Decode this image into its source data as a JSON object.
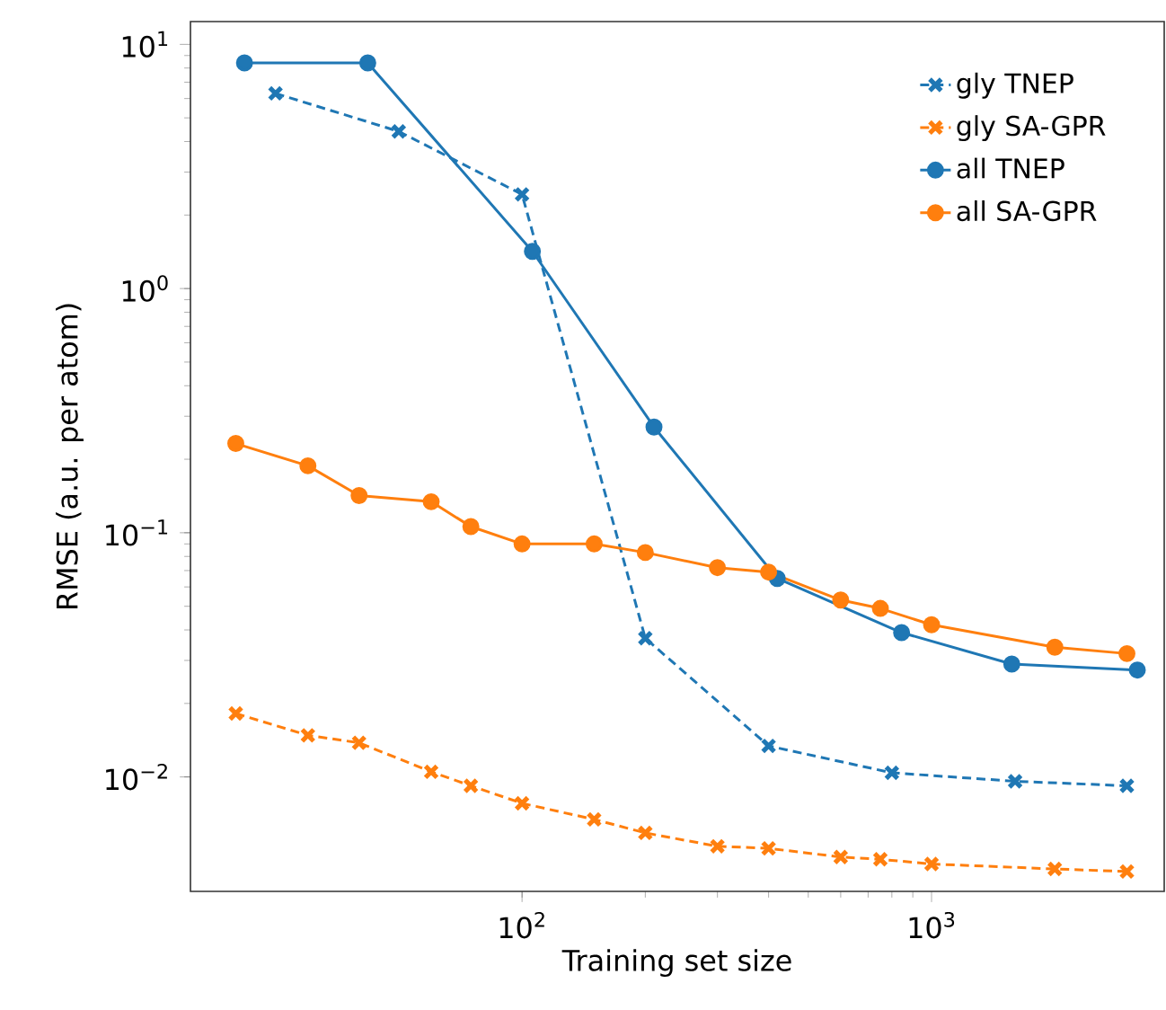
{
  "chart_data": {
    "type": "line",
    "xlabel": "Training set size",
    "ylabel": "RMSE (a.u. per atom)",
    "log": "xy",
    "legend": "top right",
    "grid": false,
    "xlim": [
      15.5,
      3700
    ],
    "ylim": [
      0.0034,
      12.4
    ],
    "xticks": [
      {
        "value": 100,
        "label": "10$^{2}$"
      },
      {
        "value": 1000,
        "label": "10$^{3}$"
      }
    ],
    "yticks": [
      {
        "value": 0.01,
        "label": "10$^{−2}$"
      },
      {
        "value": 0.1,
        "label": "10$^{−1}$"
      },
      {
        "value": 1,
        "label": "10$^{0}$"
      },
      {
        "value": 10,
        "label": "10$^{1}$"
      }
    ],
    "series": [
      {
        "name": "gly TNEP",
        "color": "#1f77b4",
        "marker": "cross",
        "line_style": "dashed",
        "x": [
          25,
          50,
          100,
          200,
          400,
          800,
          1600,
          3000
        ],
        "values": [
          6.3,
          4.4,
          2.43,
          0.037,
          0.0134,
          0.0104,
          0.0096,
          0.0092
        ]
      },
      {
        "name": "gly SA-GPR",
        "color": "#ff7f0e",
        "marker": "cross",
        "line_style": "dashed",
        "x": [
          20,
          30,
          40,
          60,
          75,
          100,
          150,
          200,
          300,
          400,
          600,
          750,
          1000,
          2000,
          3000
        ],
        "values": [
          0.0182,
          0.0148,
          0.0138,
          0.0105,
          0.0092,
          0.0078,
          0.0067,
          0.0059,
          0.0052,
          0.0051,
          0.0047,
          0.0046,
          0.0044,
          0.0042,
          0.0041
        ]
      },
      {
        "name": "all TNEP",
        "color": "#1f77b4",
        "marker": "circle",
        "line_style": "solid",
        "x": [
          21,
          42,
          106,
          210,
          420,
          845,
          1570,
          3180
        ],
        "values": [
          8.4,
          8.4,
          1.42,
          0.271,
          0.065,
          0.039,
          0.029,
          0.0274
        ]
      },
      {
        "name": "all SA-GPR",
        "color": "#ff7f0e",
        "marker": "circle",
        "line_style": "solid",
        "x": [
          20,
          30,
          40,
          60,
          75,
          100,
          150,
          200,
          300,
          400,
          600,
          750,
          1000,
          2000,
          3000
        ],
        "values": [
          0.232,
          0.188,
          0.142,
          0.134,
          0.106,
          0.09,
          0.09,
          0.083,
          0.072,
          0.069,
          0.053,
          0.049,
          0.042,
          0.034,
          0.032
        ]
      }
    ]
  }
}
